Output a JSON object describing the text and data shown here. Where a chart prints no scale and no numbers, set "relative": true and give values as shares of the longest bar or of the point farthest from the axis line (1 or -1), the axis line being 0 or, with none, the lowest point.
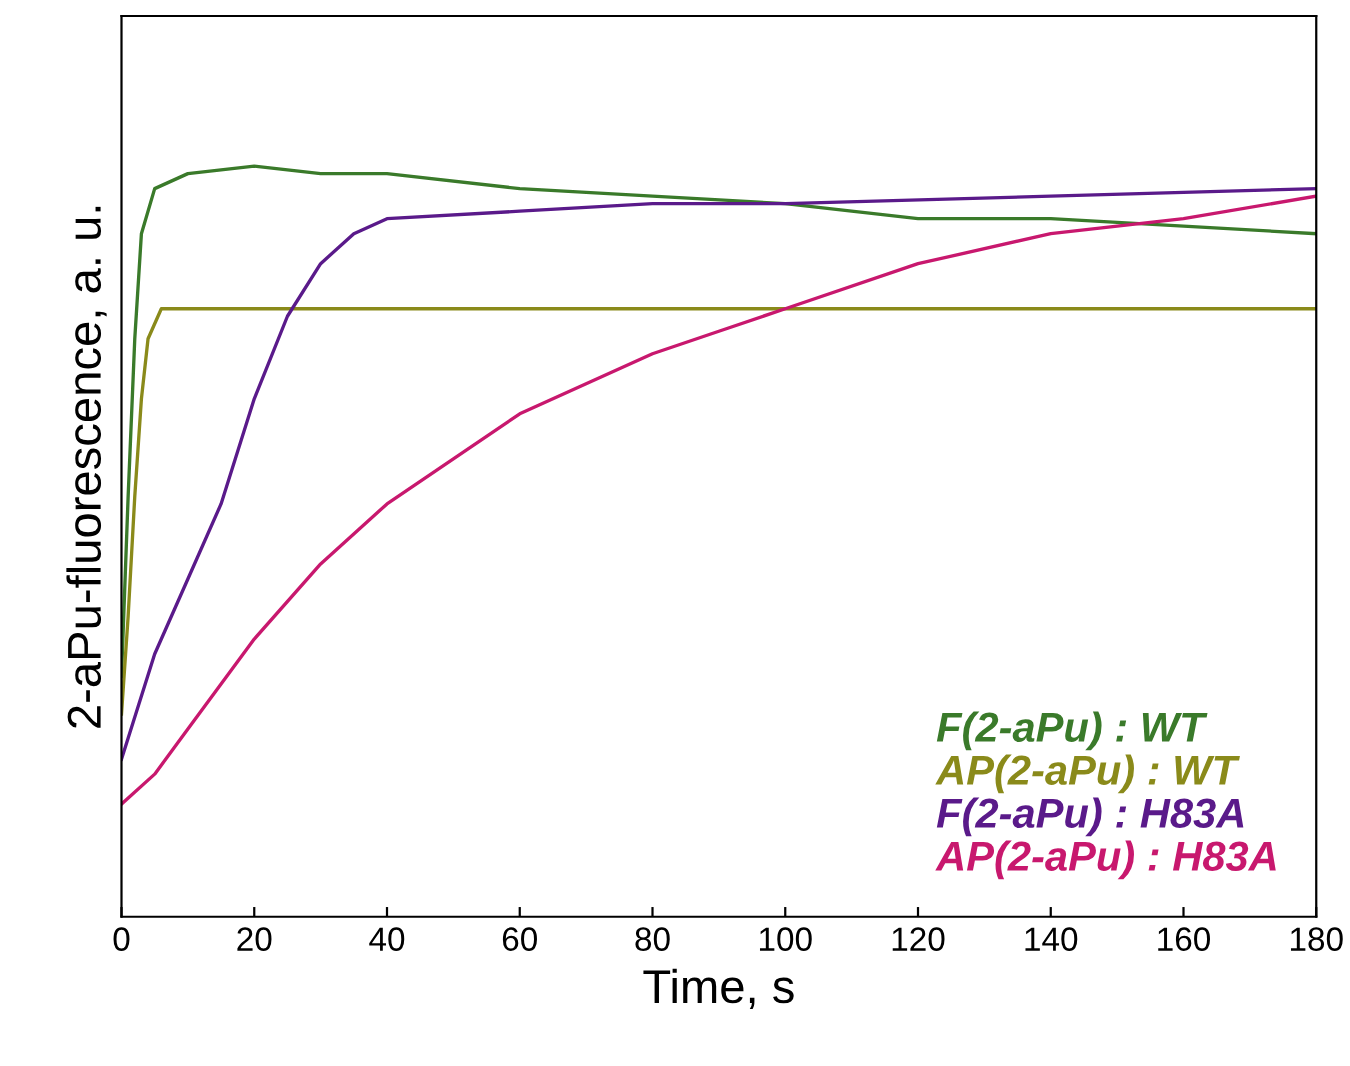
{
  "chart_data": {
    "type": "line",
    "xlabel": "Time, s",
    "ylabel": "2-aPu-fluorescence, a. u.",
    "relative": true,
    "xlim": [
      0,
      180
    ],
    "xticks": [
      0,
      20,
      40,
      60,
      80,
      100,
      120,
      140,
      160,
      180
    ],
    "tick_labels": "x",
    "legend": "bottom right",
    "grid": false,
    "marker": "none",
    "line_style": "solid",
    "series": [
      {
        "name": "F(2-aPu) : WT",
        "color": "#3a7a2a",
        "x": [
          0,
          1,
          2,
          3,
          5,
          10,
          20,
          30,
          40,
          60,
          80,
          100,
          120,
          140,
          160,
          180
        ],
        "values": [
          0.32,
          0.56,
          0.77,
          0.91,
          0.97,
          0.99,
          1.0,
          0.99,
          0.99,
          0.97,
          0.96,
          0.95,
          0.93,
          0.93,
          0.92,
          0.91
        ]
      },
      {
        "name": "AP(2-aPu) : WT",
        "color": "#8a8a1a",
        "x": [
          0,
          1,
          2,
          3,
          4,
          6,
          10,
          40,
          80,
          120,
          180
        ],
        "values": [
          0.27,
          0.4,
          0.56,
          0.69,
          0.77,
          0.81,
          0.81,
          0.81,
          0.81,
          0.81,
          0.81
        ]
      },
      {
        "name": "F(2-aPu) : H83A",
        "color": "#5a1a8a",
        "x": [
          0,
          5,
          10,
          15,
          20,
          25,
          30,
          35,
          40,
          60,
          80,
          100,
          140,
          180
        ],
        "values": [
          0.21,
          0.35,
          0.45,
          0.55,
          0.69,
          0.8,
          0.87,
          0.91,
          0.93,
          0.94,
          0.95,
          0.95,
          0.96,
          0.97
        ]
      },
      {
        "name": "AP(2-aPu) : H83A",
        "color": "#c8186e",
        "x": [
          0,
          5,
          10,
          20,
          30,
          40,
          50,
          60,
          70,
          80,
          90,
          100,
          120,
          140,
          160,
          180
        ],
        "values": [
          0.15,
          0.19,
          0.25,
          0.37,
          0.47,
          0.55,
          0.61,
          0.67,
          0.71,
          0.75,
          0.78,
          0.81,
          0.87,
          0.91,
          0.93,
          0.96
        ]
      }
    ]
  }
}
